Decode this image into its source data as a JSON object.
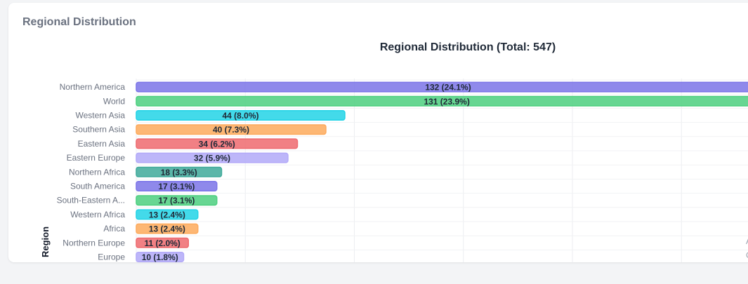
{
  "card": {
    "title": "Regional Distribution"
  },
  "chart_data": {
    "type": "bar",
    "orientation": "horizontal",
    "title": "Regional Distribution (Total: 547)",
    "xlabel": "",
    "ylabel": "Region",
    "grid": true,
    "categories": [
      "Northern America",
      "World",
      "Western Asia",
      "Southern Asia",
      "Eastern Asia",
      "Eastern Europe",
      "Northern Africa",
      "South America",
      "South-Eastern A...",
      "Western Africa",
      "Africa",
      "Northern Europe",
      "Europe"
    ],
    "values": [
      132,
      131,
      44,
      40,
      34,
      32,
      18,
      17,
      17,
      13,
      13,
      11,
      10
    ],
    "labels": [
      "132 (24.1%)",
      "131 (23.9%)",
      "44 (8.0%)",
      "40 (7.3%)",
      "34 (6.2%)",
      "32 (5.9%)",
      "18 (3.3%)",
      "17 (3.1%)",
      "17 (3.1%)",
      "13 (2.4%)",
      "13 (2.4%)",
      "11 (2.0%)",
      "10 (1.8%)"
    ],
    "colors": [
      "#7b74e8",
      "#4ccf7f",
      "#22d3e6",
      "#fdaa5c",
      "#ee6a6f",
      "#b2a9f8",
      "#3ea99a",
      "#7b74e8",
      "#4ccf7f",
      "#22d3e6",
      "#fdaa5c",
      "#ee6a6f",
      "#b2a9f8"
    ],
    "edge_text": [
      "A",
      "C"
    ]
  }
}
